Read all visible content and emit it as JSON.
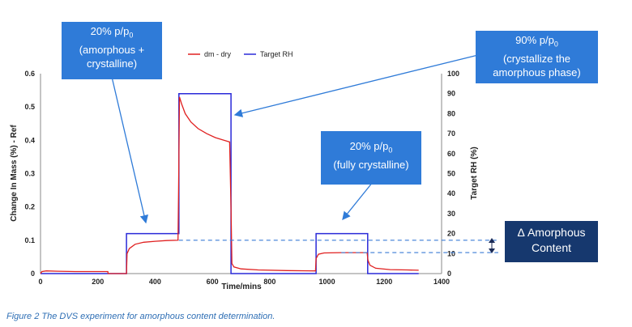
{
  "chart_data": {
    "type": "line",
    "xlabel": "Time/mins",
    "ylabel": "Change In Mass (%) - Ref",
    "y2label": "Target RH (%)",
    "xlim": [
      0,
      1400
    ],
    "ylim": [
      0,
      0.6
    ],
    "y2lim": [
      0,
      100
    ],
    "xticks": [
      "0",
      "200",
      "400",
      "600",
      "800",
      "1000",
      "1200",
      "1400"
    ],
    "yticks": [
      "0",
      "0.1",
      "0.2",
      "0.3",
      "0.4",
      "0.5",
      "0.6"
    ],
    "y2ticks": [
      "0",
      "10",
      "20",
      "30",
      "40",
      "50",
      "60",
      "70",
      "80",
      "90",
      "100"
    ],
    "legend": [
      "dm - dry",
      "Target RH"
    ],
    "series": [
      {
        "name": "dm - dry",
        "axis": "left",
        "color": "#e02020",
        "points": [
          [
            0,
            0
          ],
          [
            5,
            0.006
          ],
          [
            20,
            0.008
          ],
          [
            60,
            0.007
          ],
          [
            120,
            0.006
          ],
          [
            200,
            0.006
          ],
          [
            235,
            0.006
          ],
          [
            236,
            0
          ],
          [
            300,
            0
          ],
          [
            302,
            0.06
          ],
          [
            310,
            0.075
          ],
          [
            330,
            0.088
          ],
          [
            360,
            0.094
          ],
          [
            400,
            0.097
          ],
          [
            440,
            0.099
          ],
          [
            480,
            0.1
          ],
          [
            482,
            0.25
          ],
          [
            485,
            0.53
          ],
          [
            492,
            0.51
          ],
          [
            505,
            0.48
          ],
          [
            525,
            0.455
          ],
          [
            550,
            0.435
          ],
          [
            580,
            0.42
          ],
          [
            610,
            0.408
          ],
          [
            640,
            0.4
          ],
          [
            660,
            0.395
          ],
          [
            665,
            0.2
          ],
          [
            668,
            0.03
          ],
          [
            675,
            0.02
          ],
          [
            700,
            0.014
          ],
          [
            760,
            0.011
          ],
          [
            860,
            0.009
          ],
          [
            960,
            0.008
          ],
          [
            962,
            0.045
          ],
          [
            970,
            0.058
          ],
          [
            990,
            0.062
          ],
          [
            1050,
            0.063
          ],
          [
            1100,
            0.063
          ],
          [
            1140,
            0.063
          ],
          [
            1143,
            0.04
          ],
          [
            1150,
            0.025
          ],
          [
            1170,
            0.016
          ],
          [
            1220,
            0.012
          ],
          [
            1280,
            0.011
          ],
          [
            1320,
            0.01
          ]
        ]
      },
      {
        "name": "Target RH",
        "axis": "right",
        "color": "#2a2ad8",
        "points": [
          [
            0,
            0
          ],
          [
            300,
            0
          ],
          [
            300,
            20
          ],
          [
            483,
            20
          ],
          [
            483,
            90
          ],
          [
            665,
            90
          ],
          [
            665,
            0
          ],
          [
            962,
            0
          ],
          [
            962,
            20
          ],
          [
            1142,
            20
          ],
          [
            1142,
            0
          ],
          [
            1320,
            0
          ]
        ]
      }
    ],
    "reference_lines": [
      {
        "value": 0.1,
        "axis": "left",
        "style": "dashed"
      },
      {
        "value": 0.063,
        "axis": "left",
        "style": "dashed"
      }
    ]
  },
  "callouts": {
    "box1": {
      "line1": "20% p/p",
      "sub": "0",
      "line2": "(amorphous +",
      "line3": "crystalline)"
    },
    "box2": {
      "line1": "90% p/p",
      "sub": "0",
      "line2": "(crystallize the",
      "line3": "amorphous phase)"
    },
    "box3": {
      "line1": "20% p/p",
      "sub": "0",
      "line2": "(fully crystalline)"
    },
    "box4": {
      "line1": "Δ Amorphous",
      "line2": "Content"
    }
  },
  "caption": "Figure 2 The DVS experiment for amorphous content determination.",
  "colors": {
    "callout": "#2f7bd8",
    "callout_dark": "#16386e",
    "mass": "#e02020",
    "rh": "#2a2ad8",
    "dashed": "#3a7bd5"
  }
}
